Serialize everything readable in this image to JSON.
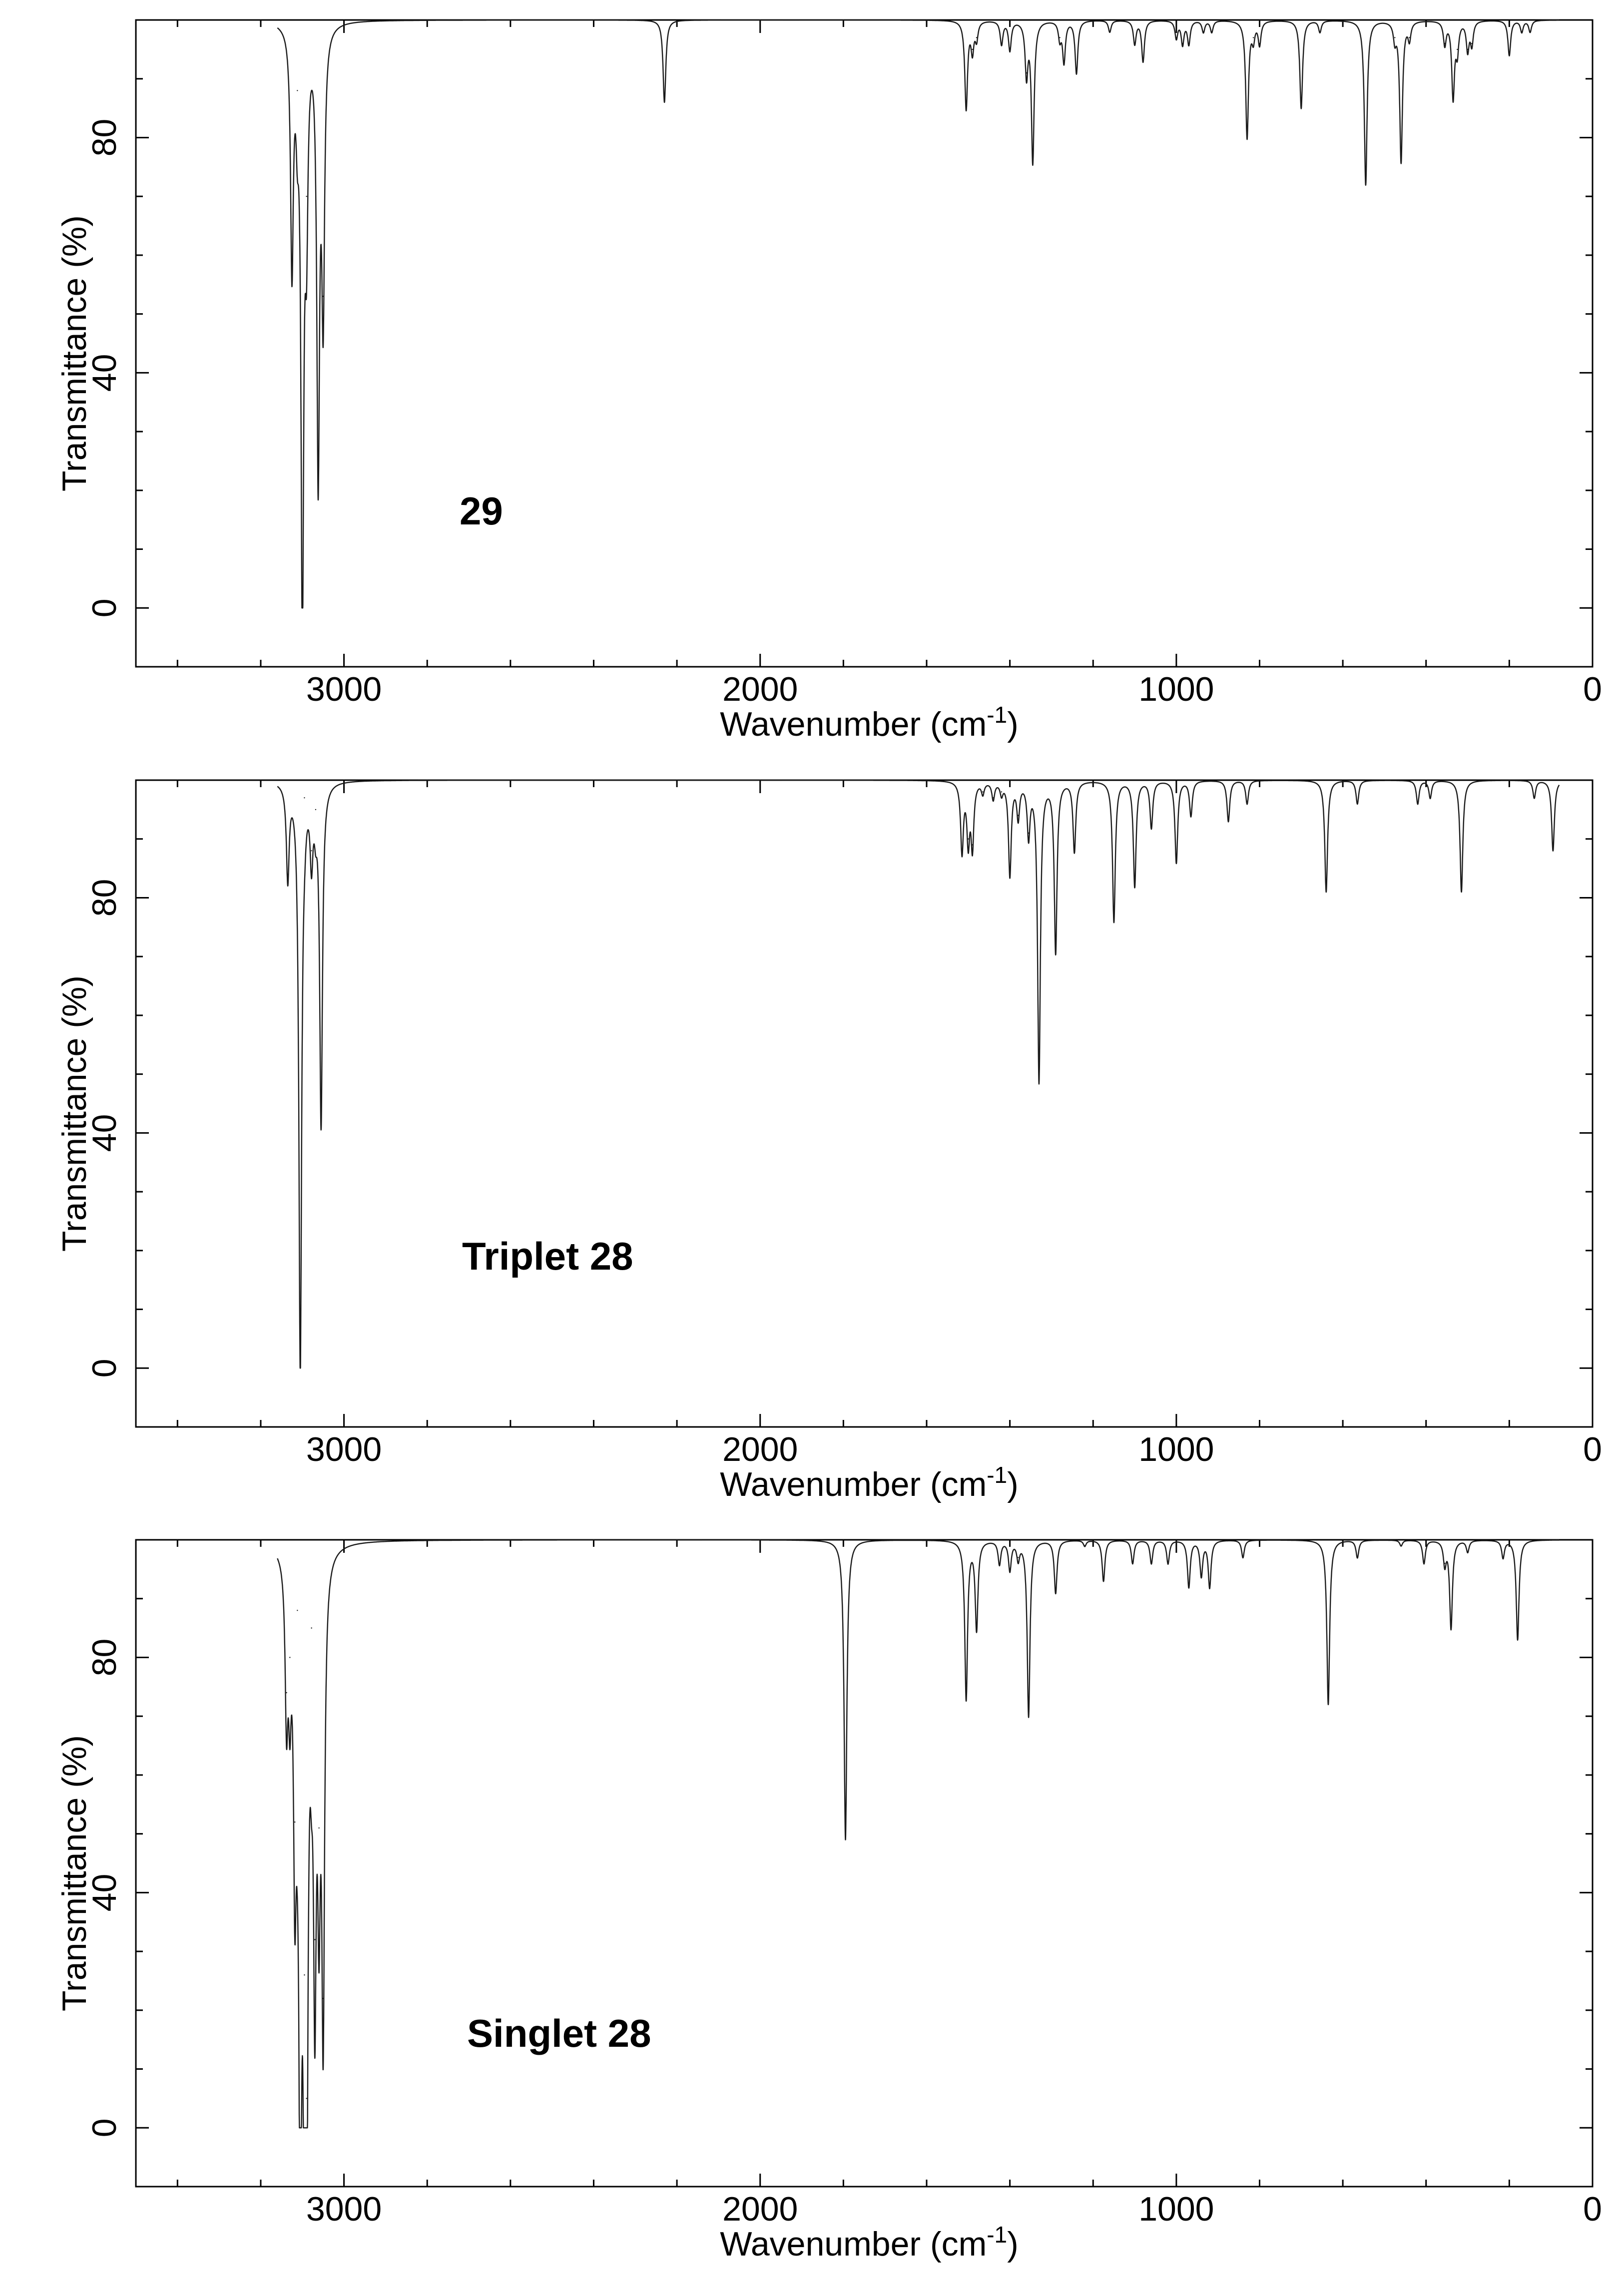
{
  "chart_data": [
    {
      "type": "line",
      "title": "",
      "annotation": "29",
      "xlabel": "Wavenumber (cm",
      "xlabel_sup": "-1",
      "xlabel_end": ")",
      "ylabel": "Transmittance (%)",
      "xlim": [
        3500,
        0
      ],
      "ylim": [
        -10,
        100
      ],
      "xticks": [
        3000,
        2000,
        1000,
        0
      ],
      "yticks": [
        0,
        40,
        80
      ],
      "xtick_labels": [
        "3000",
        "2000",
        "1000",
        "0"
      ],
      "ytick_labels": [
        "0",
        "40",
        "80"
      ],
      "grid": false,
      "peaks": [
        [
          3125,
          59
        ],
        [
          3112,
          88
        ],
        [
          3100,
          0
        ],
        [
          3090,
          70
        ],
        [
          3062,
          25
        ],
        [
          3050,
          53
        ],
        [
          2230,
          86
        ],
        [
          1505,
          85
        ],
        [
          1490,
          95
        ],
        [
          1480,
          97
        ],
        [
          1420,
          96
        ],
        [
          1400,
          95
        ],
        [
          1360,
          91
        ],
        [
          1345,
          76
        ],
        [
          1280,
          97
        ],
        [
          1270,
          93
        ],
        [
          1240,
          91
        ],
        [
          1160,
          98
        ],
        [
          1100,
          96
        ],
        [
          1080,
          93
        ],
        [
          1000,
          97
        ],
        [
          985,
          96
        ],
        [
          970,
          96
        ],
        [
          935,
          98
        ],
        [
          915,
          98
        ],
        [
          830,
          80
        ],
        [
          815,
          97
        ],
        [
          800,
          96
        ],
        [
          700,
          85
        ],
        [
          655,
          98
        ],
        [
          545,
          72
        ],
        [
          475,
          97
        ],
        [
          460,
          76
        ],
        [
          440,
          97
        ],
        [
          355,
          96
        ],
        [
          335,
          87
        ],
        [
          325,
          95
        ],
        [
          300,
          95
        ],
        [
          290,
          96
        ],
        [
          200,
          94
        ],
        [
          170,
          98
        ],
        [
          150,
          98
        ]
      ]
    },
    {
      "type": "line",
      "title": "",
      "annotation": "Triplet 28",
      "xlabel": "Wavenumber (cm",
      "xlabel_sup": "-1",
      "xlabel_end": ")",
      "ylabel": "Transmittance (%)",
      "xlim": [
        3500,
        0
      ],
      "ylim": [
        -10,
        100
      ],
      "xticks": [
        3000,
        2000,
        1000,
        0
      ],
      "yticks": [
        0,
        40,
        80
      ],
      "xtick_labels": [
        "3000",
        "2000",
        "1000",
        "0"
      ],
      "ytick_labels": [
        "0",
        "40",
        "80"
      ],
      "grid": false,
      "peaks": [
        [
          3135,
          84
        ],
        [
          3105,
          0
        ],
        [
          3095,
          97
        ],
        [
          3078,
          88
        ],
        [
          3068,
          95
        ],
        [
          3055,
          42
        ],
        [
          1515,
          88
        ],
        [
          1500,
          90
        ],
        [
          1490,
          89
        ],
        [
          1465,
          98
        ],
        [
          1440,
          97
        ],
        [
          1420,
          98
        ],
        [
          1400,
          84
        ],
        [
          1380,
          94
        ],
        [
          1355,
          91
        ],
        [
          1330,
          49
        ],
        [
          1290,
          71
        ],
        [
          1245,
          88
        ],
        [
          1150,
          76
        ],
        [
          1100,
          82
        ],
        [
          1060,
          92
        ],
        [
          1000,
          86
        ],
        [
          965,
          94
        ],
        [
          875,
          93
        ],
        [
          830,
          96
        ],
        [
          640,
          81
        ],
        [
          565,
          96
        ],
        [
          420,
          96
        ],
        [
          390,
          97
        ],
        [
          315,
          81
        ],
        [
          140,
          97
        ],
        [
          95,
          88
        ]
      ]
    },
    {
      "type": "line",
      "title": "",
      "annotation": "Singlet 28",
      "xlabel": "Wavenumber (cm",
      "xlabel_sup": "-1",
      "xlabel_end": ")",
      "ylabel": "Transmittance (%)",
      "xlim": [
        3500,
        0
      ],
      "ylim": [
        -10,
        100
      ],
      "xticks": [
        3000,
        2000,
        1000,
        0
      ],
      "yticks": [
        0,
        40,
        80
      ],
      "xtick_labels": [
        "3000",
        "2000",
        "1000",
        "0"
      ],
      "ytick_labels": [
        "0",
        "40",
        "80"
      ],
      "grid": false,
      "peaks": [
        [
          3138,
          74
        ],
        [
          3130,
          80
        ],
        [
          3118,
          52
        ],
        [
          3112,
          88
        ],
        [
          3105,
          0
        ],
        [
          3095,
          26
        ],
        [
          3090,
          5
        ],
        [
          3078,
          85
        ],
        [
          3070,
          32
        ],
        [
          3060,
          51
        ],
        [
          3050,
          22
        ],
        [
          1795,
          49
        ],
        [
          1505,
          73
        ],
        [
          1480,
          85
        ],
        [
          1425,
          96
        ],
        [
          1400,
          95
        ],
        [
          1380,
          97
        ],
        [
          1355,
          70
        ],
        [
          1290,
          91
        ],
        [
          1220,
          99
        ],
        [
          1175,
          93
        ],
        [
          1105,
          96
        ],
        [
          1060,
          96
        ],
        [
          1020,
          96
        ],
        [
          970,
          92
        ],
        [
          940,
          94
        ],
        [
          920,
          92
        ],
        [
          840,
          97
        ],
        [
          635,
          72
        ],
        [
          565,
          97
        ],
        [
          460,
          99
        ],
        [
          405,
          96
        ],
        [
          355,
          96
        ],
        [
          340,
          85
        ],
        [
          300,
          98
        ],
        [
          215,
          97
        ],
        [
          180,
          83
        ]
      ]
    }
  ]
}
